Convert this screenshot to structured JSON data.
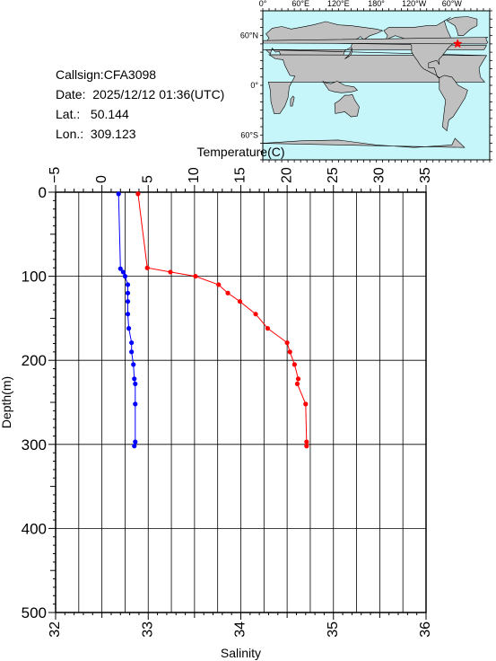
{
  "info": {
    "callsign_label": "Callsign:",
    "callsign": "CFA3098",
    "date_label": "Date:",
    "date": "2025/12/12 01:36(UTC)",
    "lat_label": "Lat.:",
    "lat": "50.144",
    "lon_label": "Lon.:",
    "lon": "309.123"
  },
  "map": {
    "top_labels": [
      "0°",
      "60°E",
      "120°E",
      "180°",
      "120°W",
      "60°W"
    ],
    "side_labels": [
      "60°N",
      "0°",
      "60°S"
    ],
    "ocean_color": "#c6f5fa",
    "land_color": "#c0c0c0",
    "marker_color": "#ff0000",
    "marker_icon": "star-icon",
    "station_lon": 309.123,
    "station_lat": 50.144
  },
  "chart_data": {
    "type": "line",
    "xlabel_top": "Temperature(C)",
    "xlabel_bottom": "Salinity",
    "ylabel": "Depth(m)",
    "temperature_range": [
      -5,
      35
    ],
    "salinity_range": [
      32,
      36
    ],
    "depth_range": [
      0,
      500
    ],
    "temperature_ticks": [
      "−5",
      "0",
      "5",
      "10",
      "15",
      "20",
      "25",
      "30",
      "35"
    ],
    "salinity_ticks": [
      "32",
      "33",
      "34",
      "35",
      "36"
    ],
    "depth_ticks": [
      "0",
      "100",
      "200",
      "300",
      "400",
      "500"
    ],
    "grid": true,
    "series": [
      {
        "name": "Temperature",
        "color": "#ff0000",
        "points": [
          {
            "x": 3.9,
            "depth": 2
          },
          {
            "x": 4.9,
            "depth": 90
          },
          {
            "x": 7.4,
            "depth": 95
          },
          {
            "x": 10.1,
            "depth": 100
          },
          {
            "x": 12.6,
            "depth": 110
          },
          {
            "x": 13.6,
            "depth": 120
          },
          {
            "x": 14.9,
            "depth": 130
          },
          {
            "x": 16.6,
            "depth": 145
          },
          {
            "x": 17.9,
            "depth": 162
          },
          {
            "x": 20.0,
            "depth": 179
          },
          {
            "x": 20.3,
            "depth": 190
          },
          {
            "x": 20.8,
            "depth": 205
          },
          {
            "x": 21.2,
            "depth": 222
          },
          {
            "x": 21.1,
            "depth": 228
          },
          {
            "x": 22.0,
            "depth": 252
          },
          {
            "x": 22.1,
            "depth": 297
          },
          {
            "x": 22.1,
            "depth": 302
          }
        ]
      },
      {
        "name": "Salinity",
        "color": "#0000ff",
        "points": [
          {
            "x": 32.68,
            "depth": 2
          },
          {
            "x": 32.7,
            "depth": 91
          },
          {
            "x": 32.73,
            "depth": 95
          },
          {
            "x": 32.75,
            "depth": 100
          },
          {
            "x": 32.78,
            "depth": 110
          },
          {
            "x": 32.78,
            "depth": 120
          },
          {
            "x": 32.78,
            "depth": 130
          },
          {
            "x": 32.78,
            "depth": 145
          },
          {
            "x": 32.79,
            "depth": 162
          },
          {
            "x": 32.82,
            "depth": 179
          },
          {
            "x": 32.82,
            "depth": 190
          },
          {
            "x": 32.84,
            "depth": 205
          },
          {
            "x": 32.85,
            "depth": 222
          },
          {
            "x": 32.86,
            "depth": 228
          },
          {
            "x": 32.86,
            "depth": 252
          },
          {
            "x": 32.86,
            "depth": 297
          },
          {
            "x": 32.85,
            "depth": 302
          }
        ]
      }
    ]
  }
}
